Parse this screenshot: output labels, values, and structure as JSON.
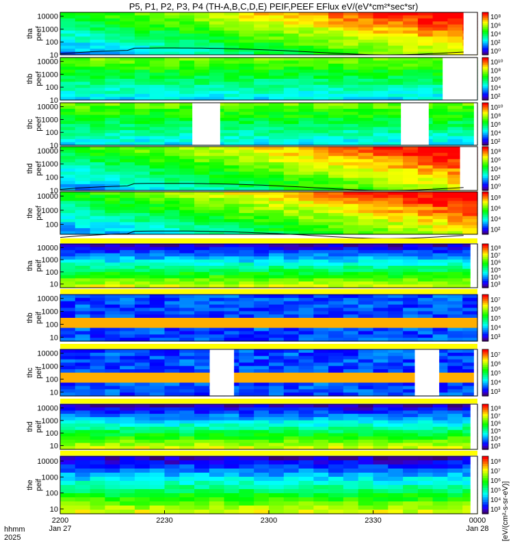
{
  "chart_data": {
    "type": "heatmap",
    "title": "P5, P1, P2, P3, P4 (TH-A,B,C,D,E) PEIF,PEEF EFlux eV/(eV*cm²*sec*sr)",
    "x_axis": {
      "row_label": "hhmm",
      "year_label": "2025",
      "ticks": [
        {
          "t": 0,
          "time": "2200",
          "date": "Jan 27"
        },
        {
          "t": 30,
          "time": "2230",
          "date": ""
        },
        {
          "t": 60,
          "time": "2300",
          "date": ""
        },
        {
          "t": 90,
          "time": "2330",
          "date": ""
        },
        {
          "t": 120,
          "time": "0000",
          "date": "Jan 28"
        }
      ],
      "xlim": [
        0,
        120
      ]
    },
    "colorbar_unit_label": "[eV/(cm²-s-sr-eV)]",
    "panels": [
      {
        "probe": "tha",
        "species": "peef",
        "ylabel_top": "tha",
        "ylabel_bottom": "peef",
        "yticks": [
          "10",
          "100",
          "1000",
          "10000"
        ],
        "ylim": [
          10,
          20000
        ],
        "log": true,
        "cbar_ticks": [
          "10⁰",
          "10²",
          "10⁴",
          "10⁶",
          "10⁸"
        ],
        "cbar_exp": [
          0,
          8
        ],
        "gaps": [
          [
            116,
            120
          ]
        ],
        "white_row": false,
        "overlay_line": true
      },
      {
        "probe": "thb",
        "species": "peef",
        "ylabel_top": "thb",
        "ylabel_bottom": "peef",
        "yticks": [
          "10",
          "100",
          "1000",
          "10000"
        ],
        "ylim": [
          10,
          20000
        ],
        "log": true,
        "cbar_ticks": [
          "10²",
          "10⁴",
          "10⁶",
          "10⁸",
          "10¹⁰"
        ],
        "cbar_exp": [
          2,
          10
        ],
        "gaps": [
          [
            110,
            120
          ]
        ],
        "white_row": false,
        "overlay_line": false
      },
      {
        "probe": "thc",
        "species": "peef",
        "ylabel_top": "thc",
        "ylabel_bottom": "peef",
        "yticks": [
          "10",
          "100",
          "1000",
          "10000"
        ],
        "ylim": [
          10,
          20000
        ],
        "log": true,
        "cbar_ticks": [
          "10²",
          "10⁴",
          "10⁶",
          "10⁸",
          "10¹⁰"
        ],
        "cbar_exp": [
          2,
          10
        ],
        "gaps": [
          [
            38,
            46
          ],
          [
            98,
            106
          ],
          [
            119,
            120
          ]
        ],
        "white_row": false,
        "overlay_line": false
      },
      {
        "probe": "thd",
        "species": "peef",
        "ylabel_top": "thd",
        "ylabel_bottom": "peef",
        "yticks": [
          "10",
          "100",
          "1000",
          "10000"
        ],
        "ylim": [
          10,
          20000
        ],
        "log": true,
        "cbar_ticks": [
          "10⁰",
          "10²",
          "10⁴",
          "10⁶",
          "10⁸"
        ],
        "cbar_exp": [
          0,
          8
        ],
        "gaps": [
          [
            115,
            120
          ]
        ],
        "white_row": false,
        "overlay_line": true
      },
      {
        "probe": "the",
        "species": "peef",
        "ylabel_top": "the",
        "ylabel_bottom": "peef",
        "yticks": [
          "100",
          "1000",
          "10000"
        ],
        "ylim": [
          20,
          20000
        ],
        "log": true,
        "cbar_ticks": [
          "10²",
          "10⁴",
          "10⁶",
          "10⁸"
        ],
        "cbar_exp": [
          2,
          8
        ],
        "gaps": [],
        "white_row": false,
        "overlay_line": true
      },
      {
        "probe": "tha",
        "species": "peif",
        "ylabel_top": "tha",
        "ylabel_bottom": "peif",
        "yticks": [
          "10",
          "100",
          "1000",
          "10000"
        ],
        "ylim": [
          5,
          20000
        ],
        "log": true,
        "cbar_ticks": [
          "10³",
          "10⁴",
          "10⁵",
          "10⁶",
          "10⁷",
          "10⁸"
        ],
        "cbar_exp": [
          3,
          8
        ],
        "gaps": [
          [
            118,
            120
          ]
        ],
        "white_row": true,
        "overlay_line": false
      },
      {
        "probe": "thb",
        "species": "peif",
        "ylabel_top": "thb",
        "ylabel_bottom": "peif",
        "yticks": [
          "10",
          "100",
          "1000",
          "10000"
        ],
        "ylim": [
          5,
          20000
        ],
        "log": true,
        "cbar_ticks": [
          "10³",
          "10⁴",
          "10⁵",
          "10⁶",
          "10⁷"
        ],
        "cbar_exp": [
          3,
          7
        ],
        "gaps": [],
        "white_row": true,
        "overlay_line": false
      },
      {
        "probe": "thc",
        "species": "peif",
        "ylabel_top": "thc",
        "ylabel_bottom": "peif",
        "yticks": [
          "10",
          "100",
          "1000",
          "10000"
        ],
        "ylim": [
          5,
          20000
        ],
        "log": true,
        "cbar_ticks": [
          "10³",
          "10⁴",
          "10⁵",
          "10⁶",
          "10⁷"
        ],
        "cbar_exp": [
          3,
          7
        ],
        "gaps": [
          [
            43,
            50
          ],
          [
            102,
            109
          ],
          [
            119,
            120
          ]
        ],
        "white_row": true,
        "overlay_line": false
      },
      {
        "probe": "thd",
        "species": "peif",
        "ylabel_top": "thd",
        "ylabel_bottom": "peif",
        "yticks": [
          "10",
          "100",
          "1000",
          "10000"
        ],
        "ylim": [
          5,
          20000
        ],
        "log": true,
        "cbar_ticks": [
          "10³",
          "10⁴",
          "10⁵",
          "10⁶",
          "10⁷",
          "10⁸"
        ],
        "cbar_exp": [
          3,
          8
        ],
        "gaps": [
          [
            118,
            120
          ]
        ],
        "white_row": true,
        "overlay_line": false
      },
      {
        "probe": "the",
        "species": "peif",
        "ylabel_top": "the",
        "ylabel_bottom": "peif",
        "yticks": [
          "10",
          "100",
          "1000",
          "10000"
        ],
        "ylim": [
          5,
          20000
        ],
        "log": true,
        "cbar_ticks": [
          "10³",
          "10⁴",
          "10⁵",
          "10⁶",
          "10⁷",
          "10⁸"
        ],
        "cbar_exp": [
          3,
          8
        ],
        "gaps": [
          [
            118,
            120
          ]
        ],
        "white_row": true,
        "overlay_line": false
      }
    ],
    "colormap": "rainbow (purple-blue-cyan-green-yellow-orange-red)",
    "grid": false
  }
}
